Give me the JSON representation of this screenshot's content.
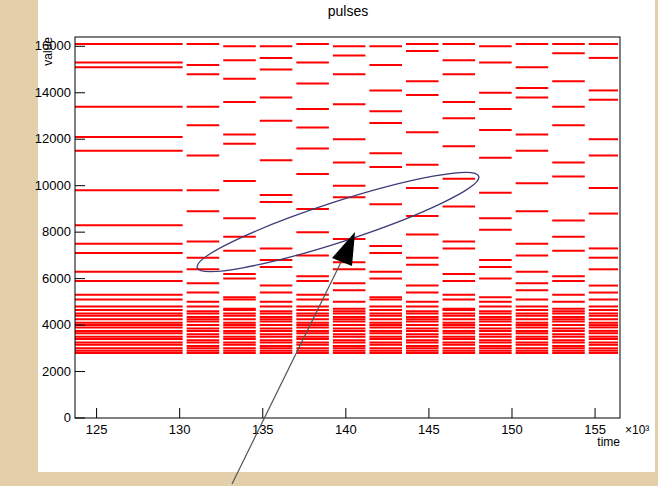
{
  "chart_data": {
    "type": "segments",
    "title": "pulses",
    "x_label": "time",
    "y_label": "value",
    "x_multiplier_label": "×10³",
    "color": "#ff0000",
    "xlim": [
      123.7,
      156.5
    ],
    "ylim": [
      0,
      16400
    ],
    "xticks": [
      125,
      130,
      135,
      140,
      145,
      150,
      155
    ],
    "yticks": [
      0,
      2000,
      4000,
      6000,
      8000,
      10000,
      12000,
      14000,
      16000
    ],
    "grid": false,
    "bins": [
      123.7,
      130.3,
      132.5,
      134.7,
      136.9,
      139.1,
      141.3,
      143.5,
      145.7,
      147.9,
      150.1,
      152.3,
      154.5,
      156.5
    ],
    "series": [
      {
        "values": [
          16100,
          16100,
          16000,
          16000,
          16100,
          16000,
          16000,
          16100,
          16100,
          16000,
          16100,
          16100,
          16100
        ]
      },
      {
        "values": [
          15300,
          15200,
          15400,
          15500,
          15300,
          15600,
          15200,
          15800,
          15400,
          15300,
          15100,
          15700,
          15500
        ]
      },
      {
        "values": [
          15100,
          14800,
          14600,
          15000,
          14400,
          14800,
          14100,
          14500,
          14800,
          14000,
          14200,
          14500,
          14100
        ]
      },
      {
        "values": [
          13400,
          13400,
          13600,
          13800,
          13300,
          13500,
          13200,
          13900,
          13600,
          13300,
          13800,
          13400,
          13700
        ]
      },
      {
        "values": [
          12100,
          12600,
          12200,
          12800,
          12500,
          12000,
          12700,
          12300,
          12900,
          12400,
          12200,
          12600,
          12000
        ]
      },
      {
        "values": [
          11500,
          11300,
          11800,
          11100,
          11600,
          11000,
          11400,
          10900,
          11700,
          11200,
          11500,
          11000,
          11300
        ]
      },
      {
        "values": [
          9800,
          9800,
          10200,
          9600,
          10500,
          10000,
          10800,
          9900,
          10300,
          9700,
          10100,
          10400,
          9900
        ]
      },
      {
        "values": [
          8300,
          8900,
          8600,
          9300,
          9000,
          9500,
          9200,
          8700,
          9100,
          8600,
          8900,
          8500,
          8800
        ]
      },
      {
        "values": [
          7500,
          7600,
          7800,
          7300,
          8000,
          7700,
          7400,
          7900,
          7600,
          8100,
          7500,
          7800,
          7300
        ]
      },
      {
        "values": [
          7100,
          6900,
          7200,
          6800,
          7000,
          6700,
          7100,
          6900,
          7300,
          6800,
          7000,
          7200,
          6900
        ]
      },
      {
        "values": [
          6300,
          6400,
          6200,
          6500,
          6100,
          6400,
          6300,
          6600,
          6200,
          6500,
          6300,
          6100,
          6400
        ]
      },
      {
        "values": [
          5900,
          5800,
          6000,
          5700,
          5900,
          5800,
          6000,
          5700,
          5900,
          6000,
          5800,
          5900,
          5700
        ]
      },
      {
        "values": [
          5300,
          5400,
          5200,
          5400,
          5300,
          5500,
          5200,
          5400,
          5300,
          5200,
          5500,
          5300,
          5400
        ]
      },
      {
        "values": [
          5100,
          5000,
          5100,
          5000,
          5100,
          5000,
          5100,
          5000,
          5100,
          5000,
          5100,
          5000,
          5100
        ]
      },
      {
        "values": [
          4800,
          4800,
          4700,
          4800,
          4800,
          4700,
          4800,
          4800,
          4700,
          4800,
          4800,
          4700,
          4800
        ]
      },
      {
        "values": [
          4650,
          4600,
          4650,
          4600,
          4650,
          4600,
          4650,
          4600,
          4650,
          4600,
          4650,
          4600,
          4650
        ]
      },
      {
        "values": [
          4500,
          4500,
          4500,
          4500,
          4500,
          4500,
          4500,
          4500,
          4500,
          4500,
          4500,
          4500,
          4500
        ]
      },
      {
        "values": [
          4400,
          4350,
          4400,
          4350,
          4400,
          4350,
          4400,
          4350,
          4400,
          4350,
          4400,
          4350,
          4400
        ]
      },
      {
        "values": [
          4250,
          4250,
          4250,
          4250,
          4250,
          4250,
          4250,
          4250,
          4250,
          4250,
          4250,
          4250,
          4250
        ]
      },
      {
        "values": [
          4100,
          4150,
          4100,
          4150,
          4100,
          4150,
          4100,
          4150,
          4100,
          4150,
          4100,
          4150,
          4100
        ]
      },
      {
        "values": [
          4000,
          4000,
          4000,
          4000,
          4000,
          4000,
          4000,
          4000,
          4000,
          4000,
          4000,
          4000,
          4000
        ]
      },
      {
        "values": [
          3900,
          3850,
          3900,
          3850,
          3900,
          3850,
          3900,
          3850,
          3900,
          3850,
          3900,
          3850,
          3900
        ]
      },
      {
        "values": [
          3750,
          3750,
          3750,
          3750,
          3750,
          3750,
          3750,
          3750,
          3750,
          3750,
          3750,
          3750,
          3750
        ]
      },
      {
        "values": [
          3650,
          3600,
          3650,
          3600,
          3650,
          3600,
          3650,
          3600,
          3650,
          3600,
          3650,
          3600,
          3650
        ]
      },
      {
        "values": [
          3500,
          3500,
          3500,
          3500,
          3500,
          3500,
          3500,
          3500,
          3500,
          3500,
          3500,
          3500,
          3500
        ]
      },
      {
        "values": [
          3400,
          3350,
          3400,
          3350,
          3400,
          3350,
          3400,
          3350,
          3400,
          3350,
          3400,
          3350,
          3400
        ]
      },
      {
        "values": [
          3250,
          3250,
          3250,
          3250,
          3250,
          3250,
          3250,
          3250,
          3250,
          3250,
          3250,
          3250,
          3250
        ]
      },
      {
        "values": [
          3150,
          3100,
          3150,
          3100,
          3150,
          3100,
          3150,
          3100,
          3150,
          3100,
          3150,
          3100,
          3150
        ]
      },
      {
        "values": [
          3000,
          3000,
          3000,
          3000,
          3000,
          3000,
          3000,
          3000,
          3000,
          3000,
          3000,
          3000,
          3000
        ]
      },
      {
        "values": [
          2900,
          2900,
          2900,
          2900,
          2900,
          2900,
          2900,
          2900,
          2900,
          2900,
          2900,
          2900,
          2900
        ]
      },
      {
        "values": [
          2800,
          2800,
          2800,
          2800,
          2800,
          2800,
          2800,
          2800,
          2800,
          2800,
          2800,
          2800,
          2800
        ]
      }
    ]
  }
}
